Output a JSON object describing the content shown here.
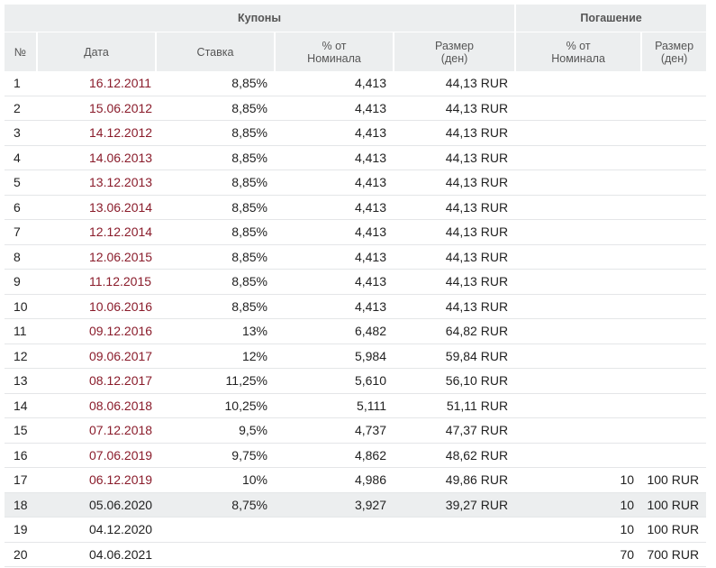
{
  "header": {
    "coupons_label": "Купоны",
    "redemption_label": "Погашение",
    "col_num": "№",
    "col_date": "Дата",
    "col_rate": "Ставка",
    "col_pct_line1": "% от",
    "col_pct_line2": "Номинала",
    "col_size_line1": "Размер",
    "col_size_line2": "(ден)",
    "col_red_pct_line1": "% от",
    "col_red_pct_line2": "Номинала",
    "col_red_size_line1": "Размер",
    "col_red_size_line2": "(ден)"
  },
  "rows": [
    {
      "num": "1",
      "date": "16.12.2011",
      "rate": "8,85%",
      "pct": "4,413",
      "size": "44,13 RUR",
      "red_pct": "",
      "red_size": "",
      "style": "past"
    },
    {
      "num": "2",
      "date": "15.06.2012",
      "rate": "8,85%",
      "pct": "4,413",
      "size": "44,13 RUR",
      "red_pct": "",
      "red_size": "",
      "style": "past"
    },
    {
      "num": "3",
      "date": "14.12.2012",
      "rate": "8,85%",
      "pct": "4,413",
      "size": "44,13 RUR",
      "red_pct": "",
      "red_size": "",
      "style": "past"
    },
    {
      "num": "4",
      "date": "14.06.2013",
      "rate": "8,85%",
      "pct": "4,413",
      "size": "44,13 RUR",
      "red_pct": "",
      "red_size": "",
      "style": "past"
    },
    {
      "num": "5",
      "date": "13.12.2013",
      "rate": "8,85%",
      "pct": "4,413",
      "size": "44,13 RUR",
      "red_pct": "",
      "red_size": "",
      "style": "past"
    },
    {
      "num": "6",
      "date": "13.06.2014",
      "rate": "8,85%",
      "pct": "4,413",
      "size": "44,13 RUR",
      "red_pct": "",
      "red_size": "",
      "style": "past"
    },
    {
      "num": "7",
      "date": "12.12.2014",
      "rate": "8,85%",
      "pct": "4,413",
      "size": "44,13 RUR",
      "red_pct": "",
      "red_size": "",
      "style": "past"
    },
    {
      "num": "8",
      "date": "12.06.2015",
      "rate": "8,85%",
      "pct": "4,413",
      "size": "44,13 RUR",
      "red_pct": "",
      "red_size": "",
      "style": "past"
    },
    {
      "num": "9",
      "date": "11.12.2015",
      "rate": "8,85%",
      "pct": "4,413",
      "size": "44,13 RUR",
      "red_pct": "",
      "red_size": "",
      "style": "past"
    },
    {
      "num": "10",
      "date": "10.06.2016",
      "rate": "8,85%",
      "pct": "4,413",
      "size": "44,13 RUR",
      "red_pct": "",
      "red_size": "",
      "style": "past"
    },
    {
      "num": "11",
      "date": "09.12.2016",
      "rate": "13%",
      "pct": "6,482",
      "size": "64,82 RUR",
      "red_pct": "",
      "red_size": "",
      "style": "past"
    },
    {
      "num": "12",
      "date": "09.06.2017",
      "rate": "12%",
      "pct": "5,984",
      "size": "59,84 RUR",
      "red_pct": "",
      "red_size": "",
      "style": "past"
    },
    {
      "num": "13",
      "date": "08.12.2017",
      "rate": "11,25%",
      "pct": "5,610",
      "size": "56,10 RUR",
      "red_pct": "",
      "red_size": "",
      "style": "past"
    },
    {
      "num": "14",
      "date": "08.06.2018",
      "rate": "10,25%",
      "pct": "5,111",
      "size": "51,11 RUR",
      "red_pct": "",
      "red_size": "",
      "style": "past"
    },
    {
      "num": "15",
      "date": "07.12.2018",
      "rate": "9,5%",
      "pct": "4,737",
      "size": "47,37 RUR",
      "red_pct": "",
      "red_size": "",
      "style": "past"
    },
    {
      "num": "16",
      "date": "07.06.2019",
      "rate": "9,75%",
      "pct": "4,862",
      "size": "48,62 RUR",
      "red_pct": "",
      "red_size": "",
      "style": "past"
    },
    {
      "num": "17",
      "date": "06.12.2019",
      "rate": "10%",
      "pct": "4,986",
      "size": "49,86 RUR",
      "red_pct": "10",
      "red_size": "100 RUR",
      "style": "past"
    },
    {
      "num": "18",
      "date": "05.06.2020",
      "rate": "8,75%",
      "pct": "3,927",
      "size": "39,27 RUR",
      "red_pct": "10",
      "red_size": "100 RUR",
      "style": "highlight"
    },
    {
      "num": "19",
      "date": "04.12.2020",
      "rate": "",
      "pct": "",
      "size": "",
      "red_pct": "10",
      "red_size": "100 RUR",
      "style": "plain"
    },
    {
      "num": "20",
      "date": "04.06.2021",
      "rate": "",
      "pct": "",
      "size": "",
      "red_pct": "70",
      "red_size": "700 RUR",
      "style": "plain"
    }
  ],
  "colors": {
    "header_bg": "#eceeef",
    "past_date": "#8a1c2b",
    "highlight_bg": "#eceeef"
  }
}
